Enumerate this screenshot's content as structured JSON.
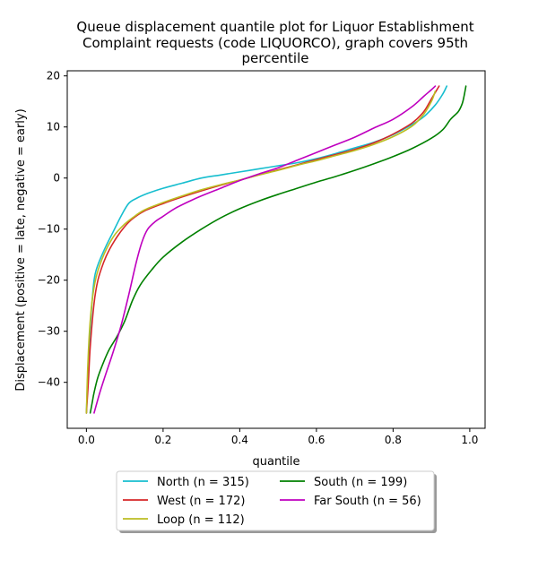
{
  "chart_data": {
    "type": "line",
    "title_lines": [
      "Queue displacement quantile plot for Liquor Establishment",
      "Complaint  requests (code LIQUORCO), graph covers 95th",
      "percentile"
    ],
    "xlabel": "quantile",
    "ylabel": "Displacement (positive = late, negative = early)",
    "xlim": [
      -0.05,
      1.04
    ],
    "ylim": [
      -49,
      21
    ],
    "xticks": [
      0.0,
      0.2,
      0.4,
      0.6,
      0.8,
      1.0
    ],
    "xtick_labels": [
      "0.0",
      "0.2",
      "0.4",
      "0.6",
      "0.8",
      "1.0"
    ],
    "yticks": [
      -40,
      -30,
      -20,
      -10,
      0,
      10,
      20
    ],
    "ytick_labels": [
      "−40",
      "−30",
      "−20",
      "−10",
      "0",
      "10",
      "20"
    ],
    "grid": false,
    "legend_position": "below",
    "legend_columns": 2,
    "series": [
      {
        "name": "North (n = 315)",
        "color": "#17becf",
        "x": [
          0.0,
          0.005,
          0.012,
          0.02,
          0.03,
          0.05,
          0.07,
          0.09,
          0.11,
          0.13,
          0.16,
          0.2,
          0.25,
          0.3,
          0.35,
          0.4,
          0.45,
          0.5,
          0.55,
          0.6,
          0.65,
          0.7,
          0.75,
          0.8,
          0.85,
          0.88,
          0.91,
          0.93,
          0.94
        ],
        "y": [
          -46,
          -36,
          -27,
          -20,
          -17,
          -13.5,
          -10.5,
          -7.5,
          -5,
          -4,
          -3,
          -2,
          -1,
          0,
          0.6,
          1.2,
          1.8,
          2.4,
          3,
          3.8,
          4.8,
          5.9,
          7,
          8.5,
          10.5,
          12,
          14.3,
          16.5,
          18
        ]
      },
      {
        "name": "West (n = 172)",
        "color": "#d62728",
        "x": [
          0.0,
          0.005,
          0.01,
          0.02,
          0.03,
          0.045,
          0.06,
          0.08,
          0.1,
          0.12,
          0.15,
          0.2,
          0.25,
          0.3,
          0.35,
          0.4,
          0.45,
          0.5,
          0.55,
          0.6,
          0.65,
          0.7,
          0.75,
          0.8,
          0.85,
          0.88,
          0.9,
          0.92
        ],
        "y": [
          -46,
          -40,
          -33,
          -24.5,
          -20,
          -16.5,
          -14,
          -11.5,
          -9.5,
          -8,
          -6.5,
          -5,
          -3.7,
          -2.5,
          -1.4,
          -0.4,
          0.6,
          1.6,
          2.6,
          3.6,
          4.6,
          5.6,
          6.9,
          8.6,
          10.8,
          13,
          15.5,
          18
        ]
      },
      {
        "name": "Loop (n = 112)",
        "color": "#bcbd22",
        "x": [
          0.0,
          0.003,
          0.008,
          0.015,
          0.025,
          0.04,
          0.055,
          0.075,
          0.1,
          0.12,
          0.15,
          0.2,
          0.25,
          0.3,
          0.35,
          0.4,
          0.45,
          0.5,
          0.55,
          0.6,
          0.65,
          0.7,
          0.75,
          0.8,
          0.85,
          0.88,
          0.9,
          0.91
        ],
        "y": [
          -46,
          -38,
          -30,
          -24,
          -19.5,
          -16,
          -13.5,
          -11,
          -9,
          -7.8,
          -6.3,
          -4.8,
          -3.5,
          -2.3,
          -1.3,
          -0.4,
          0.6,
          1.5,
          2.5,
          3.4,
          4.4,
          5.4,
          6.6,
          8.1,
          10.2,
          12.5,
          15,
          17
        ]
      },
      {
        "name": "South (n = 199)",
        "color": "#008000",
        "x": [
          0.01,
          0.015,
          0.02,
          0.03,
          0.045,
          0.06,
          0.08,
          0.1,
          0.12,
          0.14,
          0.17,
          0.2,
          0.25,
          0.3,
          0.35,
          0.4,
          0.45,
          0.5,
          0.55,
          0.6,
          0.65,
          0.7,
          0.75,
          0.8,
          0.85,
          0.9,
          0.93,
          0.95,
          0.97,
          0.98,
          0.985,
          0.99
        ],
        "y": [
          -46,
          -44,
          -42,
          -39,
          -36,
          -33.5,
          -31,
          -28,
          -24,
          -21,
          -18,
          -15.5,
          -12.5,
          -10,
          -7.8,
          -6,
          -4.5,
          -3.2,
          -2,
          -0.8,
          0.3,
          1.5,
          2.8,
          4.2,
          5.8,
          7.8,
          9.5,
          11.5,
          13,
          14.5,
          16,
          18
        ]
      },
      {
        "name": "Far South (n = 56)",
        "color": "#bf00bf",
        "x": [
          0.02,
          0.035,
          0.05,
          0.07,
          0.09,
          0.11,
          0.13,
          0.145,
          0.16,
          0.18,
          0.2,
          0.23,
          0.27,
          0.3,
          0.35,
          0.4,
          0.45,
          0.5,
          0.55,
          0.6,
          0.65,
          0.7,
          0.75,
          0.8,
          0.85,
          0.88,
          0.9,
          0.91
        ],
        "y": [
          -46,
          -42,
          -38.5,
          -34,
          -29,
          -23,
          -16.5,
          -12.5,
          -10,
          -8.5,
          -7.5,
          -6,
          -4.5,
          -3.5,
          -2,
          -0.5,
          0.8,
          2,
          3.5,
          5,
          6.5,
          8,
          9.8,
          11.5,
          14,
          16,
          17.3,
          18
        ]
      }
    ]
  }
}
